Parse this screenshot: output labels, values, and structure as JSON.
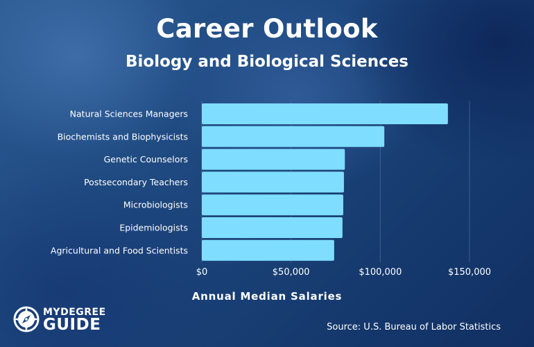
{
  "chart_data": {
    "type": "bar",
    "orientation": "horizontal",
    "title": "Career Outlook",
    "subtitle": "Biology and Biological Sciences",
    "xlabel": "Annual Median Salaries",
    "ylabel": "",
    "xlim": [
      0,
      150000
    ],
    "x_ticks": [
      0,
      50000,
      100000,
      150000
    ],
    "x_tick_labels": [
      "$0",
      "$50,000",
      "$100,000",
      "$150,000"
    ],
    "grid": "vertical",
    "legend": "none",
    "categories": [
      "Natural Sciences Managers",
      "Biochemists and Biophysicists",
      "Genetic Counselors",
      "Postsecondary Teachers",
      "Microbiologists",
      "Epidemiologists",
      "Agricultural and Food Scientists"
    ],
    "values": [
      137900,
      102270,
      80150,
      79640,
      79260,
      78830,
      74160
    ]
  },
  "colors": {
    "bar": "#7fddff",
    "background": "#1f4a82",
    "text": "#ffffff",
    "grid": "#5e7fa8"
  },
  "branding": {
    "logo_top": "MYDEGREE",
    "logo_bottom": "GUIDE",
    "logo_icon": "compass-icon"
  },
  "footer": {
    "source": "Source: U.S. Bureau of Labor Statistics"
  }
}
